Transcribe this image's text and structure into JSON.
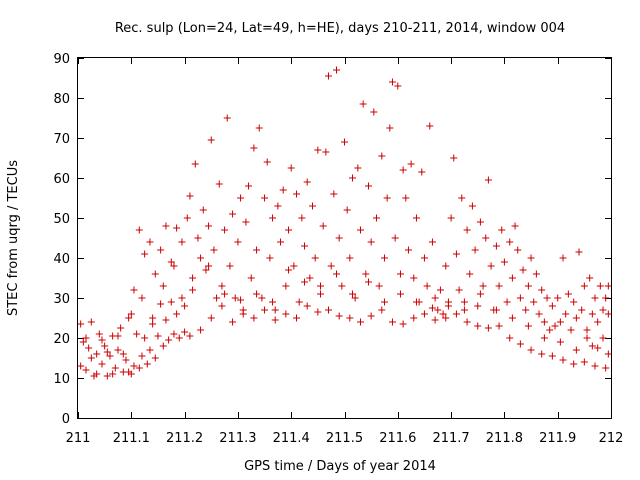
{
  "chart_data": {
    "type": "scatter",
    "title": "Rec. sulp (Lon=24, Lat=49, h=HE), days 210-211, 2014, window 004",
    "xlabel": "GPS time / Days of year 2014",
    "ylabel": "STEC from uqrg / TECUs",
    "xlim": [
      211,
      212
    ],
    "ylim": [
      0,
      90
    ],
    "xticks": [
      "211",
      "211.1",
      "211.2",
      "211.3",
      "211.4",
      "211.5",
      "211.6",
      "211.7",
      "211.8",
      "211.9",
      "212"
    ],
    "yticks": [
      "0",
      "10",
      "20",
      "30",
      "40",
      "50",
      "60",
      "70",
      "80",
      "90"
    ],
    "marker": "plus",
    "color": "#cc0000",
    "grid": false,
    "legend": "none",
    "series": [
      {
        "name": "",
        "points": [
          [
            211.005,
            23.5
          ],
          [
            211.01,
            19.0
          ],
          [
            211.015,
            12.0
          ],
          [
            211.02,
            17.5
          ],
          [
            211.025,
            24.0
          ],
          [
            211.03,
            10.5
          ],
          [
            211.035,
            16.0
          ],
          [
            211.04,
            21.0
          ],
          [
            211.045,
            13.5
          ],
          [
            211.05,
            18.0
          ],
          [
            211.055,
            10.5
          ],
          [
            211.06,
            15.5
          ],
          [
            211.065,
            20.5
          ],
          [
            211.07,
            12.5
          ],
          [
            211.075,
            17.0
          ],
          [
            211.08,
            22.5
          ],
          [
            211.085,
            11.5
          ],
          [
            211.09,
            14.5
          ],
          [
            211.095,
            25.0
          ],
          [
            211.1,
            11.0
          ],
          [
            211.105,
            13.0
          ],
          [
            211.11,
            21.0
          ],
          [
            211.115,
            12.5
          ],
          [
            211.12,
            15.5
          ],
          [
            211.125,
            20.0
          ],
          [
            211.13,
            13.5
          ],
          [
            211.135,
            17.0
          ],
          [
            211.14,
            23.5
          ],
          [
            211.145,
            15.0
          ],
          [
            211.15,
            20.5
          ],
          [
            211.155,
            28.5
          ],
          [
            211.16,
            18.0
          ],
          [
            211.165,
            24.5
          ],
          [
            211.17,
            19.5
          ],
          [
            211.175,
            29.0
          ],
          [
            211.18,
            21.0
          ],
          [
            211.185,
            26.0
          ],
          [
            211.19,
            20.0
          ],
          [
            211.195,
            30.0
          ],
          [
            211.2,
            21.5
          ],
          [
            211.005,
            13.0
          ],
          [
            211.015,
            20.0
          ],
          [
            211.025,
            15.0
          ],
          [
            211.035,
            11.0
          ],
          [
            211.045,
            19.5
          ],
          [
            211.055,
            16.5
          ],
          [
            211.065,
            11.0
          ],
          [
            211.075,
            20.5
          ],
          [
            211.085,
            16.0
          ],
          [
            211.095,
            11.5
          ],
          [
            211.105,
            32.0
          ],
          [
            211.115,
            47.0
          ],
          [
            211.125,
            41.0
          ],
          [
            211.135,
            44.0
          ],
          [
            211.145,
            36.0
          ],
          [
            211.155,
            42.0
          ],
          [
            211.165,
            48.0
          ],
          [
            211.175,
            39.0
          ],
          [
            211.185,
            47.5
          ],
          [
            211.195,
            44.0
          ],
          [
            211.1,
            26.0
          ],
          [
            211.12,
            30.0
          ],
          [
            211.14,
            25.0
          ],
          [
            211.16,
            33.0
          ],
          [
            211.18,
            38.0
          ],
          [
            211.2,
            28.0
          ],
          [
            211.205,
            50.0
          ],
          [
            211.21,
            55.5
          ],
          [
            211.215,
            32.0
          ],
          [
            211.22,
            63.5
          ],
          [
            211.225,
            45.0
          ],
          [
            211.23,
            40.0
          ],
          [
            211.235,
            52.0
          ],
          [
            211.24,
            37.0
          ],
          [
            211.245,
            48.0
          ],
          [
            211.25,
            69.5
          ],
          [
            211.255,
            42.0
          ],
          [
            211.26,
            30.0
          ],
          [
            211.265,
            58.5
          ],
          [
            211.27,
            33.0
          ],
          [
            211.275,
            47.0
          ],
          [
            211.28,
            75.0
          ],
          [
            211.285,
            38.0
          ],
          [
            211.29,
            51.0
          ],
          [
            211.295,
            30.0
          ],
          [
            211.3,
            44.0
          ],
          [
            211.305,
            55.0
          ],
          [
            211.31,
            27.0
          ],
          [
            211.315,
            49.0
          ],
          [
            211.32,
            58.0
          ],
          [
            211.325,
            35.0
          ],
          [
            211.33,
            67.5
          ],
          [
            211.335,
            42.0
          ],
          [
            211.34,
            72.5
          ],
          [
            211.345,
            30.0
          ],
          [
            211.35,
            55.0
          ],
          [
            211.355,
            64.0
          ],
          [
            211.36,
            40.0
          ],
          [
            211.365,
            50.0
          ],
          [
            211.37,
            27.0
          ],
          [
            211.375,
            53.0
          ],
          [
            211.38,
            44.0
          ],
          [
            211.385,
            57.0
          ],
          [
            211.39,
            33.0
          ],
          [
            211.395,
            47.0
          ],
          [
            211.4,
            62.5
          ],
          [
            211.405,
            38.0
          ],
          [
            211.41,
            56.0
          ],
          [
            211.415,
            29.0
          ],
          [
            211.42,
            50.0
          ],
          [
            211.425,
            43.0
          ],
          [
            211.43,
            59.0
          ],
          [
            211.435,
            35.0
          ],
          [
            211.44,
            53.0
          ],
          [
            211.445,
            40.0
          ],
          [
            211.45,
            67.0
          ],
          [
            211.455,
            31.0
          ],
          [
            211.46,
            48.0
          ],
          [
            211.465,
            66.5
          ],
          [
            211.47,
            85.5
          ],
          [
            211.475,
            38.0
          ],
          [
            211.48,
            56.0
          ],
          [
            211.485,
            87.0
          ],
          [
            211.49,
            45.0
          ],
          [
            211.495,
            33.0
          ],
          [
            211.5,
            69.0
          ],
          [
            211.505,
            52.0
          ],
          [
            211.51,
            40.0
          ],
          [
            211.515,
            60.0
          ],
          [
            211.52,
            30.0
          ],
          [
            211.525,
            62.5
          ],
          [
            211.53,
            47.0
          ],
          [
            211.535,
            78.5
          ],
          [
            211.54,
            36.0
          ],
          [
            211.545,
            58.0
          ],
          [
            211.55,
            44.0
          ],
          [
            211.555,
            76.5
          ],
          [
            211.56,
            50.0
          ],
          [
            211.565,
            33.0
          ],
          [
            211.57,
            65.5
          ],
          [
            211.575,
            40.0
          ],
          [
            211.58,
            55.0
          ],
          [
            211.585,
            72.5
          ],
          [
            211.59,
            84.0
          ],
          [
            211.595,
            45.0
          ],
          [
            211.6,
            83.0
          ],
          [
            211.605,
            36.0
          ],
          [
            211.61,
            62.0
          ],
          [
            211.615,
            55.0
          ],
          [
            211.62,
            42.0
          ],
          [
            211.625,
            63.5
          ],
          [
            211.63,
            35.0
          ],
          [
            211.635,
            50.0
          ],
          [
            211.64,
            29.0
          ],
          [
            211.645,
            61.5
          ],
          [
            211.65,
            40.0
          ],
          [
            211.655,
            33.0
          ],
          [
            211.66,
            73.0
          ],
          [
            211.665,
            44.0
          ],
          [
            211.67,
            30.0
          ],
          [
            211.675,
            27.0
          ],
          [
            211.68,
            32.0
          ],
          [
            211.685,
            26.0
          ],
          [
            211.69,
            38.0
          ],
          [
            211.695,
            29.0
          ],
          [
            211.7,
            50.0
          ],
          [
            211.705,
            65.0
          ],
          [
            211.71,
            41.0
          ],
          [
            211.715,
            32.0
          ],
          [
            211.72,
            55.0
          ],
          [
            211.725,
            27.0
          ],
          [
            211.73,
            47.0
          ],
          [
            211.735,
            36.0
          ],
          [
            211.74,
            53.0
          ],
          [
            211.745,
            42.0
          ],
          [
            211.75,
            28.0
          ],
          [
            211.755,
            49.0
          ],
          [
            211.76,
            33.0
          ],
          [
            211.765,
            45.0
          ],
          [
            211.77,
            59.5
          ],
          [
            211.775,
            38.0
          ],
          [
            211.78,
            27.0
          ],
          [
            211.785,
            43.0
          ],
          [
            211.79,
            33.0
          ],
          [
            211.795,
            47.0
          ],
          [
            211.8,
            39.0
          ],
          [
            211.805,
            29.0
          ],
          [
            211.81,
            44.0
          ],
          [
            211.815,
            35.0
          ],
          [
            211.82,
            48.0
          ],
          [
            211.825,
            42.0
          ],
          [
            211.83,
            30.0
          ],
          [
            211.835,
            37.0
          ],
          [
            211.84,
            27.0
          ],
          [
            211.845,
            33.0
          ],
          [
            211.85,
            40.0
          ],
          [
            211.855,
            29.0
          ],
          [
            211.86,
            36.0
          ],
          [
            211.865,
            26.0
          ],
          [
            211.87,
            32.0
          ],
          [
            211.875,
            24.0
          ],
          [
            211.88,
            30.0
          ],
          [
            211.885,
            22.0
          ],
          [
            211.89,
            28.0
          ],
          [
            211.895,
            23.0
          ],
          [
            211.9,
            30.0
          ],
          [
            211.905,
            24.0
          ],
          [
            211.91,
            40.0
          ],
          [
            211.915,
            26.0
          ],
          [
            211.92,
            31.0
          ],
          [
            211.925,
            22.0
          ],
          [
            211.93,
            29.0
          ],
          [
            211.935,
            25.0
          ],
          [
            211.94,
            41.5
          ],
          [
            211.945,
            27.0
          ],
          [
            211.95,
            33.0
          ],
          [
            211.955,
            22.0
          ],
          [
            211.96,
            35.0
          ],
          [
            211.965,
            26.0
          ],
          [
            211.97,
            30.0
          ],
          [
            211.975,
            24.0
          ],
          [
            211.98,
            33.0
          ],
          [
            211.985,
            27.0
          ],
          [
            211.99,
            30.0
          ],
          [
            211.21,
            20.5
          ],
          [
            211.23,
            22.0
          ],
          [
            211.25,
            25.0
          ],
          [
            211.27,
            28.0
          ],
          [
            211.29,
            24.0
          ],
          [
            211.31,
            26.0
          ],
          [
            211.33,
            25.0
          ],
          [
            211.35,
            27.0
          ],
          [
            211.37,
            24.5
          ],
          [
            211.39,
            26.0
          ],
          [
            211.41,
            25.0
          ],
          [
            211.43,
            28.0
          ],
          [
            211.45,
            26.5
          ],
          [
            211.47,
            27.0
          ],
          [
            211.49,
            25.5
          ],
          [
            211.51,
            25.0
          ],
          [
            211.53,
            24.0
          ],
          [
            211.55,
            25.5
          ],
          [
            211.57,
            27.0
          ],
          [
            211.59,
            24.0
          ],
          [
            211.61,
            23.5
          ],
          [
            211.63,
            25.0
          ],
          [
            211.65,
            26.0
          ],
          [
            211.67,
            24.5
          ],
          [
            211.69,
            25.0
          ],
          [
            211.71,
            26.0
          ],
          [
            211.73,
            24.0
          ],
          [
            211.75,
            23.0
          ],
          [
            211.77,
            22.5
          ],
          [
            211.79,
            23.0
          ],
          [
            211.81,
            20.0
          ],
          [
            211.83,
            18.5
          ],
          [
            211.85,
            17.0
          ],
          [
            211.87,
            16.0
          ],
          [
            211.89,
            15.5
          ],
          [
            211.91,
            14.5
          ],
          [
            211.93,
            13.5
          ],
          [
            211.95,
            14.0
          ],
          [
            211.97,
            13.0
          ],
          [
            211.99,
            12.5
          ],
          [
            211.215,
            35.0
          ],
          [
            211.245,
            38.0
          ],
          [
            211.275,
            31.0
          ],
          [
            211.305,
            29.5
          ],
          [
            211.335,
            31.0
          ],
          [
            211.365,
            29.0
          ],
          [
            211.395,
            37.0
          ],
          [
            211.425,
            34.0
          ],
          [
            211.455,
            33.0
          ],
          [
            211.485,
            36.0
          ],
          [
            211.515,
            31.0
          ],
          [
            211.545,
            34.0
          ],
          [
            211.575,
            29.0
          ],
          [
            211.605,
            31.0
          ],
          [
            211.635,
            29.0
          ],
          [
            211.665,
            27.5
          ],
          [
            211.695,
            28.0
          ],
          [
            211.725,
            29.0
          ],
          [
            211.755,
            31.0
          ],
          [
            211.785,
            27.0
          ],
          [
            211.815,
            25.0
          ],
          [
            211.845,
            23.0
          ],
          [
            211.875,
            20.0
          ],
          [
            211.905,
            19.0
          ],
          [
            211.935,
            17.0
          ],
          [
            211.965,
            18.0
          ],
          [
            211.995,
            16.0
          ],
          [
            211.955,
            20.0
          ],
          [
            211.975,
            17.5
          ],
          [
            211.995,
            26.0
          ],
          [
            211.995,
            33.0
          ],
          [
            211.985,
            20.0
          ]
        ]
      }
    ]
  }
}
